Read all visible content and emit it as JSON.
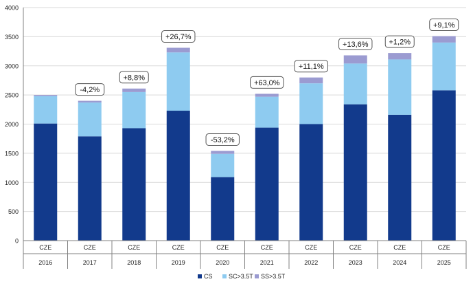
{
  "chart_data": {
    "type": "bar",
    "stacked": true,
    "title": "",
    "xlabel": "",
    "ylabel": "",
    "ylim": [
      0,
      4000
    ],
    "yticks": [
      0,
      500,
      1000,
      1500,
      2000,
      2500,
      3000,
      3500,
      4000
    ],
    "grid": true,
    "legend_position": "bottom",
    "categories": [
      {
        "top": "CZE",
        "bottom": "2016"
      },
      {
        "top": "CZE",
        "bottom": "2017"
      },
      {
        "top": "CZE",
        "bottom": "2018"
      },
      {
        "top": "CZE",
        "bottom": "2019"
      },
      {
        "top": "CZE",
        "bottom": "2020"
      },
      {
        "top": "CZE",
        "bottom": "2021"
      },
      {
        "top": "CZE",
        "bottom": "2022"
      },
      {
        "top": "CZE",
        "bottom": "2023"
      },
      {
        "top": "CZE",
        "bottom": "2024"
      },
      {
        "top": "CZE",
        "bottom": "2025"
      }
    ],
    "series": [
      {
        "name": "CS",
        "color": "#123a8c",
        "values": [
          2010,
          1790,
          1930,
          2230,
          1090,
          1940,
          2000,
          2340,
          2160,
          2580
        ]
      },
      {
        "name": "SC>3.5T",
        "color": "#8ecbf0",
        "values": [
          470,
          580,
          620,
          1000,
          400,
          530,
          700,
          700,
          950,
          820
        ]
      },
      {
        "name": "SS>3.5T",
        "color": "#9b9bd1",
        "values": [
          20,
          30,
          60,
          80,
          50,
          50,
          100,
          140,
          110,
          110
        ]
      }
    ],
    "annotations": [
      "",
      "-4,2%",
      "+8,8%",
      "+26,7%",
      "-53,2%",
      "+63,0%",
      "+11,1%",
      "+13,6%",
      "+1,2%",
      "+9,1%"
    ]
  }
}
